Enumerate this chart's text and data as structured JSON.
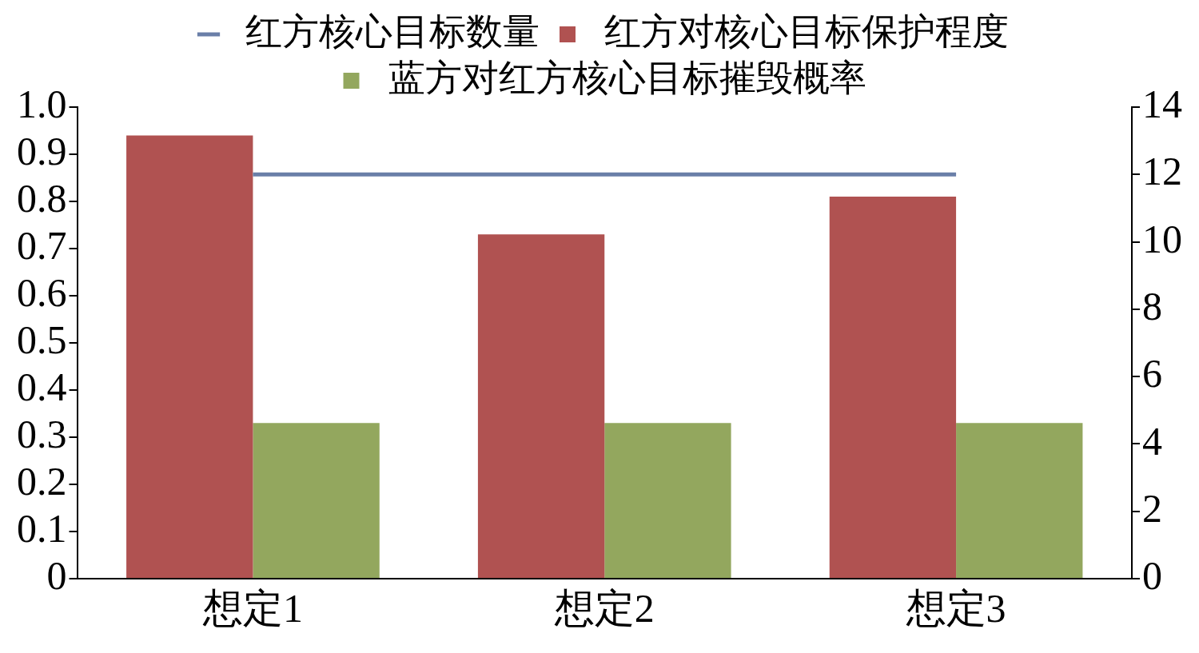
{
  "chart_data": {
    "type": "bar",
    "categories": [
      "想定1",
      "想定2",
      "想定3"
    ],
    "series": [
      {
        "name": "红方对核心目标保护程度",
        "color": "#b05251",
        "values": [
          0.94,
          0.73,
          0.81
        ]
      },
      {
        "name": "红方核心目标数量",
        "type": "line",
        "axis": "y2",
        "color": "#6a7fa8",
        "values": [
          12,
          12,
          12
        ]
      },
      {
        "name": "蓝方对红方核心目标摧毁概率",
        "color": "#93a75e",
        "values": [
          0.33,
          0.33,
          0.33
        ]
      }
    ],
    "ylim": [
      0,
      1
    ],
    "yticks": [
      0,
      0.1,
      0.2,
      0.3,
      0.4,
      0.5,
      0.6,
      0.7,
      0.8,
      0.9,
      {
        "value": 1,
        "label": "1.0"
      }
    ],
    "y2lim": [
      0,
      14
    ],
    "y2ticks": [
      0,
      2,
      4,
      6,
      8,
      10,
      12,
      14
    ],
    "grid": false,
    "legend": "top",
    "marker": "none"
  }
}
